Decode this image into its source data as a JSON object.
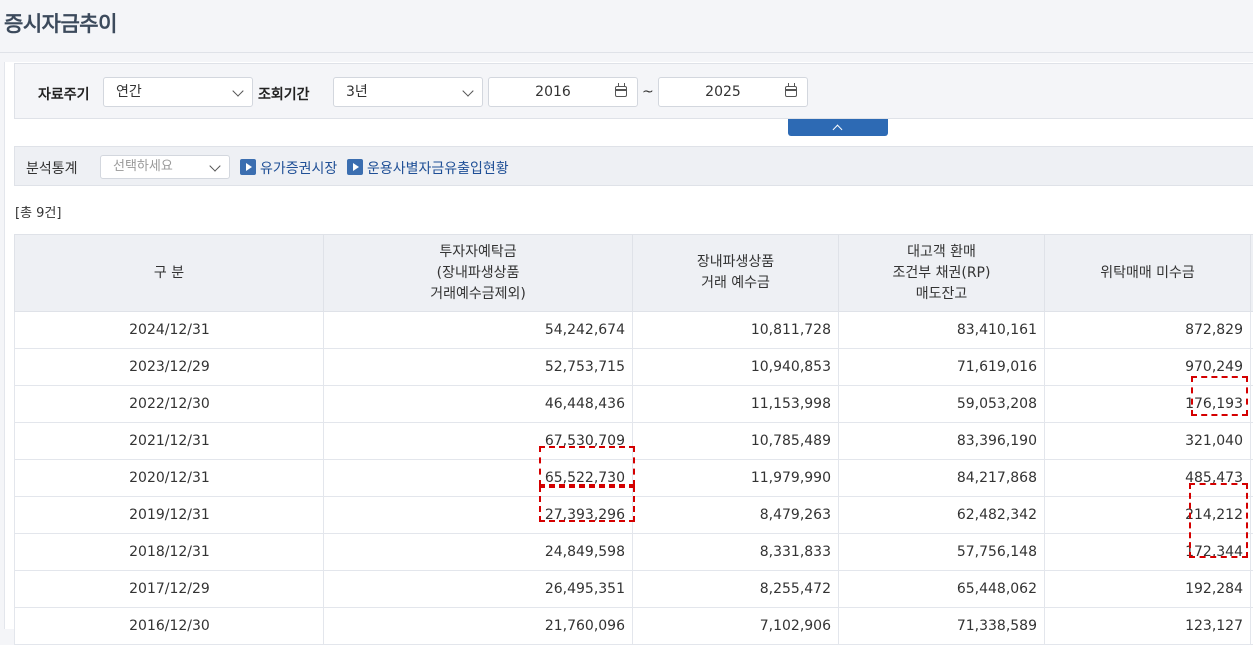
{
  "page": {
    "title": "증시자금추이"
  },
  "filters": {
    "period_label": "자료주기",
    "period_value": "연간",
    "range_label": "조회기간",
    "range_value": "3년",
    "start_year": "2016",
    "end_year": "2025",
    "separator": "~"
  },
  "analysis": {
    "label": "분석통계",
    "select_placeholder": "선택하세요",
    "links": [
      "유가증권시장",
      "운용사별자금유출입현황"
    ]
  },
  "result": {
    "count_text": "[총 9건]"
  },
  "table": {
    "headers": [
      "구 분",
      "투자자예탁금\n(장내파생상품\n거래예수금제외)",
      "장내파생상품\n거래 예수금",
      "대고객 환매\n조건부 채권(RP)\n매도잔고",
      "위탁매매 미수금",
      ""
    ],
    "rows": [
      [
        "2024/12/31",
        "54,242,674",
        "10,811,728",
        "83,410,161",
        "872,829"
      ],
      [
        "2023/12/29",
        "52,753,715",
        "10,940,853",
        "71,619,016",
        "970,249"
      ],
      [
        "2022/12/30",
        "46,448,436",
        "11,153,998",
        "59,053,208",
        "176,193"
      ],
      [
        "2021/12/31",
        "67,530,709",
        "10,785,489",
        "83,396,190",
        "321,040"
      ],
      [
        "2020/12/31",
        "65,522,730",
        "11,979,990",
        "84,217,868",
        "485,473"
      ],
      [
        "2019/12/31",
        "27,393,296",
        "8,479,263",
        "62,482,342",
        "214,212"
      ],
      [
        "2018/12/31",
        "24,849,598",
        "8,331,833",
        "57,756,148",
        "172,344"
      ],
      [
        "2017/12/29",
        "26,495,351",
        "8,255,472",
        "65,448,062",
        "192,284"
      ],
      [
        "2016/12/30",
        "21,760,096",
        "7,102,906",
        "71,338,589",
        "123,127"
      ]
    ]
  },
  "colors": {
    "accent": "#2d6ab4",
    "highlight": "#d40000",
    "header_bg": "#eef0f4"
  }
}
